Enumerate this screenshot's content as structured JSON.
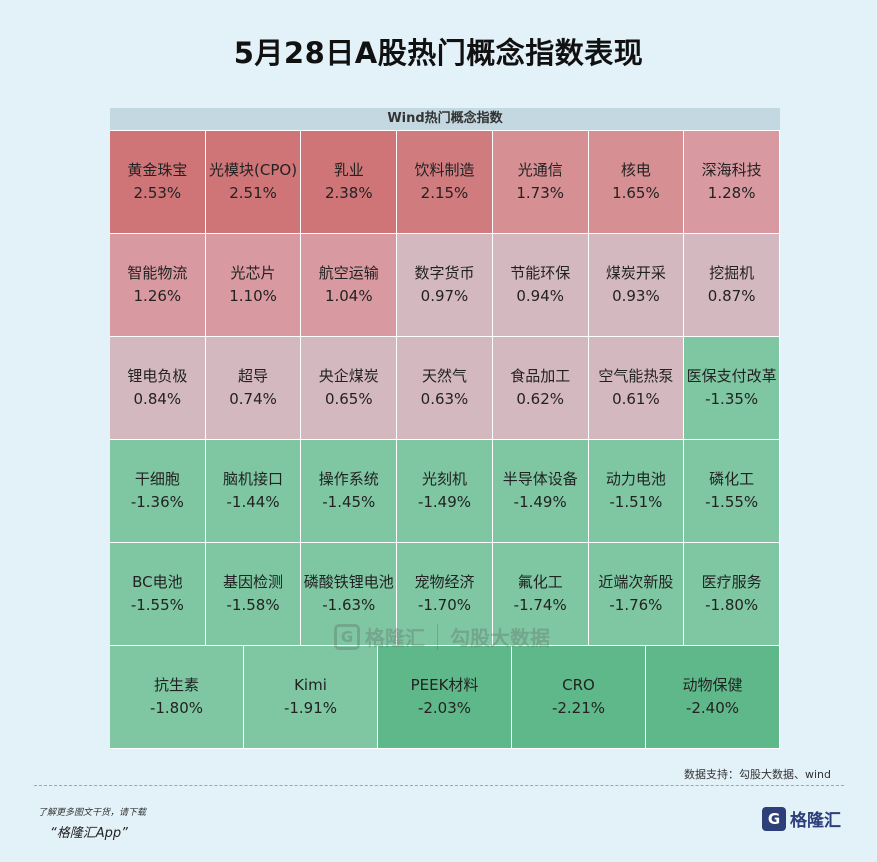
{
  "page": {
    "title": "5月28日A股热门概念指数表现"
  },
  "chart_data": {
    "type": "heatmap",
    "header": "Wind热门概念指数",
    "rows": [
      [
        {
          "name": "黄金珠宝",
          "value": "2.53%",
          "color": "#cf7577"
        },
        {
          "name": "光模块(CPO)",
          "value": "2.51%",
          "color": "#cf7577"
        },
        {
          "name": "乳业",
          "value": "2.38%",
          "color": "#cf7577"
        },
        {
          "name": "饮料制造",
          "value": "2.15%",
          "color": "#d07b7e"
        },
        {
          "name": "光通信",
          "value": "1.73%",
          "color": "#d68f93"
        },
        {
          "name": "核电",
          "value": "1.65%",
          "color": "#d68f93"
        },
        {
          "name": "深海科技",
          "value": "1.28%",
          "color": "#d89aa0"
        }
      ],
      [
        {
          "name": "智能物流",
          "value": "1.26%",
          "color": "#d89aa0"
        },
        {
          "name": "光芯片",
          "value": "1.10%",
          "color": "#d89aa0"
        },
        {
          "name": "航空运输",
          "value": "1.04%",
          "color": "#d89aa0"
        },
        {
          "name": "数字货币",
          "value": "0.97%",
          "color": "#d4b8bf"
        },
        {
          "name": "节能环保",
          "value": "0.94%",
          "color": "#d4b8bf"
        },
        {
          "name": "煤炭开采",
          "value": "0.93%",
          "color": "#d4b8bf"
        },
        {
          "name": "挖掘机",
          "value": "0.87%",
          "color": "#d4b8bf"
        }
      ],
      [
        {
          "name": "锂电负极",
          "value": "0.84%",
          "color": "#d4b8bf"
        },
        {
          "name": "超导",
          "value": "0.74%",
          "color": "#d4b8bf"
        },
        {
          "name": "央企煤炭",
          "value": "0.65%",
          "color": "#d4b8bf"
        },
        {
          "name": "天然气",
          "value": "0.63%",
          "color": "#d4b8bf"
        },
        {
          "name": "食品加工",
          "value": "0.62%",
          "color": "#d4b8bf"
        },
        {
          "name": "空气能热泵",
          "value": "0.61%",
          "color": "#d4b8bf"
        },
        {
          "name": "医保支付改革",
          "value": "-1.35%",
          "color": "#7fc6a3"
        }
      ],
      [
        {
          "name": "干细胞",
          "value": "-1.36%",
          "color": "#7fc6a3"
        },
        {
          "name": "脑机接口",
          "value": "-1.44%",
          "color": "#7fc6a3"
        },
        {
          "name": "操作系统",
          "value": "-1.45%",
          "color": "#7fc6a3"
        },
        {
          "name": "光刻机",
          "value": "-1.49%",
          "color": "#7fc6a3"
        },
        {
          "name": "半导体设备",
          "value": "-1.49%",
          "color": "#7fc6a3"
        },
        {
          "name": "动力电池",
          "value": "-1.51%",
          "color": "#7fc6a3"
        },
        {
          "name": "磷化工",
          "value": "-1.55%",
          "color": "#7fc6a3"
        }
      ],
      [
        {
          "name": "BC电池",
          "value": "-1.55%",
          "color": "#7fc6a3"
        },
        {
          "name": "基因检测",
          "value": "-1.58%",
          "color": "#7fc6a3"
        },
        {
          "name": "磷酸铁锂电池",
          "value": "-1.63%",
          "color": "#7fc6a3"
        },
        {
          "name": "宠物经济",
          "value": "-1.70%",
          "color": "#7fc6a3"
        },
        {
          "name": "氟化工",
          "value": "-1.74%",
          "color": "#7fc6a3"
        },
        {
          "name": "近端次新股",
          "value": "-1.76%",
          "color": "#7fc6a3"
        },
        {
          "name": "医疗服务",
          "value": "-1.80%",
          "color": "#7fc6a3"
        }
      ],
      [
        {
          "name": "抗生素",
          "value": "-1.80%",
          "color": "#7fc6a3"
        },
        {
          "name": "Kimi",
          "value": "-1.91%",
          "color": "#7fc6a3"
        },
        {
          "name": "PEEK材料",
          "value": "-2.03%",
          "color": "#5fb88a"
        },
        {
          "name": "CRO",
          "value": "-2.21%",
          "color": "#5fb88a"
        },
        {
          "name": "动物保健",
          "value": "-2.40%",
          "color": "#5fb88a"
        }
      ]
    ]
  },
  "watermark": {
    "logo_letter": "G",
    "text1": "格隆汇",
    "text2": "勾股大数据"
  },
  "footer": {
    "source": "数据支持：勾股大数据、wind",
    "note_line1": "了解更多图文干货，请下载",
    "note_line2": "“格隆汇App”",
    "brand_logo": "G",
    "brand_name": "格隆汇"
  }
}
